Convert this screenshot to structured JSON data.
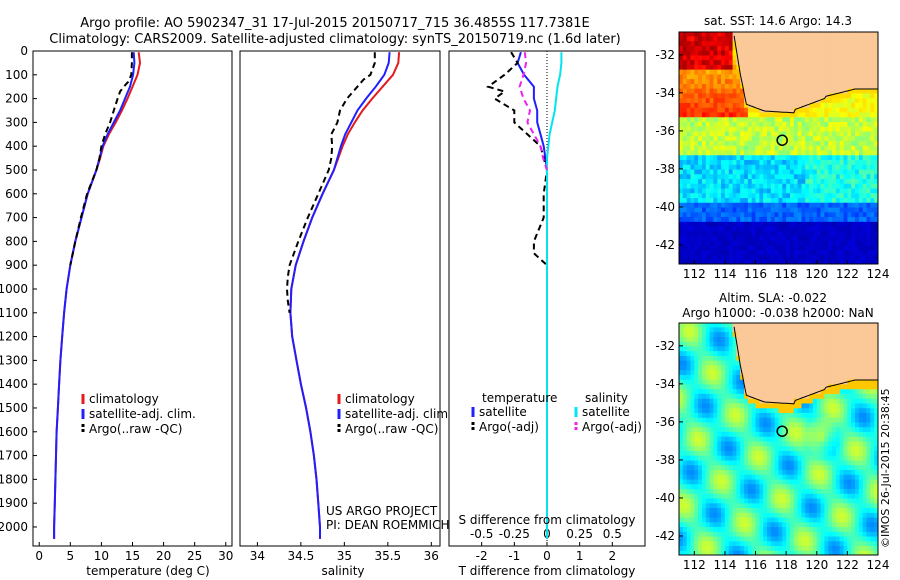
{
  "header": {
    "line1": "Argo profile: AO 5902347_31 17-Jul-2015 20150717_715 36.4855S 117.7381E",
    "line2": "Climatology: CARS2009. Satellite-adjusted climatology: synTS_20150719.nc (1.6d later)"
  },
  "watermark": "©IMOS 26-Jul-2015 20:38:45",
  "colors": {
    "climatology": "#e41a1c",
    "satellite": "#1f1fff",
    "argo": "#000000",
    "sat_salinity": "#00e5ee",
    "argo_salinity": "#ee22ee",
    "land": "#fbc898"
  },
  "chart_data": [
    {
      "id": "temperature",
      "type": "line",
      "xlabel": "temperature (deg C)",
      "ylabel": "",
      "xlim": [
        -1,
        31
      ],
      "ylim": [
        2080,
        0
      ],
      "xticks": [
        0,
        5,
        10,
        15,
        20,
        25,
        30
      ],
      "yticks": [
        0,
        100,
        200,
        300,
        400,
        500,
        600,
        700,
        800,
        900,
        1000,
        1100,
        1200,
        1300,
        1400,
        1500,
        1600,
        1700,
        1800,
        1900,
        2000
      ],
      "series": [
        {
          "name": "climatology",
          "color": "#e41a1c",
          "dash": "",
          "depth": [
            5,
            50,
            100,
            150,
            200,
            250,
            300,
            350,
            400,
            450,
            500,
            600,
            700,
            800,
            900,
            1000,
            1100,
            1200,
            1300,
            1400,
            1500,
            1600,
            1700,
            1800,
            1900,
            2000,
            2050
          ],
          "values": [
            16.0,
            16.2,
            15.8,
            15.0,
            14.2,
            13.3,
            12.3,
            11.2,
            10.3,
            9.8,
            9.2,
            7.8,
            6.8,
            5.8,
            5.0,
            4.4,
            4.0,
            3.7,
            3.4,
            3.2,
            3.0,
            2.8,
            2.7,
            2.6,
            2.5,
            2.4,
            2.4
          ]
        },
        {
          "name": "satellite-adj. clim.",
          "color": "#1f1fff",
          "dash": "",
          "depth": [
            5,
            50,
            100,
            150,
            200,
            250,
            300,
            350,
            400,
            450,
            500,
            600,
            700,
            800,
            900,
            1000,
            1100,
            1200,
            1300,
            1400,
            1500,
            1600,
            1700,
            1800,
            1900,
            2000,
            2050
          ],
          "values": [
            15.2,
            15.3,
            15.1,
            14.6,
            13.8,
            13.0,
            12.0,
            11.0,
            10.2,
            9.7,
            9.2,
            7.8,
            6.8,
            5.8,
            5.0,
            4.4,
            4.0,
            3.7,
            3.4,
            3.2,
            3.0,
            2.8,
            2.7,
            2.6,
            2.5,
            2.4,
            2.4
          ]
        },
        {
          "name": "Argo(..raw -QC)",
          "color": "#000000",
          "dash": "6,4",
          "depth": [
            5,
            50,
            100,
            130,
            150,
            170,
            200,
            250,
            300,
            350,
            400,
            450,
            500,
            600,
            700,
            800,
            900
          ],
          "values": [
            14.9,
            14.9,
            14.8,
            14.3,
            13.6,
            13.0,
            12.6,
            12.0,
            11.4,
            10.6,
            10.0,
            9.7,
            9.2,
            7.7,
            6.7,
            5.8,
            5.0
          ]
        }
      ],
      "legend": [
        "climatology",
        "satellite-adj. clim.",
        "Argo(..raw -QC)"
      ]
    },
    {
      "id": "salinity",
      "type": "line",
      "xlabel": "salinity",
      "xlim": [
        33.8,
        36.1
      ],
      "ylim": [
        2080,
        0
      ],
      "xticks": [
        34,
        34.5,
        35,
        35.5,
        36
      ],
      "series": [
        {
          "name": "climatology",
          "color": "#e41a1c",
          "dash": "",
          "depth": [
            5,
            50,
            100,
            150,
            200,
            250,
            300,
            350,
            400,
            450,
            500,
            600,
            700,
            800,
            900,
            1000,
            1100,
            1200,
            1300,
            1400,
            1500,
            1600,
            1700,
            1800,
            1900,
            2000,
            2050
          ],
          "values": [
            35.63,
            35.62,
            35.56,
            35.44,
            35.32,
            35.21,
            35.12,
            35.04,
            34.98,
            34.93,
            34.88,
            34.75,
            34.63,
            34.53,
            34.44,
            34.39,
            34.38,
            34.4,
            34.45,
            34.5,
            34.56,
            34.61,
            34.65,
            34.68,
            34.7,
            34.72,
            34.72
          ]
        },
        {
          "name": "satellite-adj. clim.",
          "color": "#1f1fff",
          "dash": "",
          "depth": [
            5,
            50,
            100,
            150,
            200,
            250,
            300,
            350,
            400,
            450,
            500,
            600,
            700,
            800,
            900,
            1000,
            1100,
            1200,
            1300,
            1400,
            1500,
            1600,
            1700,
            1800,
            1900,
            2000,
            2050
          ],
          "values": [
            35.52,
            35.51,
            35.46,
            35.36,
            35.25,
            35.15,
            35.08,
            35.01,
            34.96,
            34.92,
            34.88,
            34.75,
            34.63,
            34.53,
            34.44,
            34.39,
            34.38,
            34.4,
            34.45,
            34.5,
            34.56,
            34.61,
            34.65,
            34.68,
            34.7,
            34.72,
            34.72
          ]
        },
        {
          "name": "Argo(..raw -QC)",
          "color": "#000000",
          "dash": "6,4",
          "depth": [
            5,
            50,
            100,
            120,
            150,
            200,
            250,
            300,
            350,
            400,
            450,
            500,
            600,
            700,
            800,
            900,
            950,
            1000,
            1050,
            1100
          ],
          "values": [
            35.35,
            35.35,
            35.3,
            35.22,
            35.15,
            35.03,
            34.95,
            34.92,
            34.85,
            34.86,
            34.85,
            34.82,
            34.7,
            34.58,
            34.47,
            34.37,
            34.35,
            34.34,
            34.35,
            34.37
          ]
        }
      ],
      "legend": [
        "climatology",
        "satellite-adj. clim.",
        "Argo(..raw -QC)"
      ],
      "annotation": [
        "US ARGO PROJECT",
        "PI: DEAN ROEMMICH"
      ]
    },
    {
      "id": "difference",
      "type": "line",
      "xlabel": "T difference from climatology",
      "top_xlabel": "S difference from climatology",
      "xlim": [
        -3,
        3
      ],
      "ylim": [
        2080,
        0
      ],
      "xticks_T": [
        -2,
        -1,
        0,
        1,
        2
      ],
      "xticks_S": [
        "-0.5",
        "-0.25",
        "0",
        "0.25",
        "0.5"
      ],
      "series": [
        {
          "name": "T satellite",
          "color": "#1f1fff",
          "dash": "",
          "depth": [
            5,
            50,
            100,
            150,
            200,
            250,
            300,
            350,
            400,
            450,
            500,
            600,
            800,
            1000,
            1500,
            2050
          ],
          "values": [
            -0.8,
            -0.9,
            -0.7,
            -0.4,
            -0.4,
            -0.3,
            -0.3,
            -0.2,
            -0.1,
            -0.05,
            0,
            0,
            0,
            0,
            0,
            0
          ]
        },
        {
          "name": "T Argo(-adj)",
          "color": "#000000",
          "dash": "6,4",
          "depth": [
            5,
            50,
            100,
            150,
            170,
            200,
            250,
            300,
            350,
            400,
            450,
            500,
            600,
            700,
            800,
            850,
            900
          ],
          "values": [
            -1.1,
            -0.9,
            -1.3,
            -1.8,
            -1.3,
            -1.6,
            -1.0,
            -1.0,
            -0.6,
            -0.2,
            -0.1,
            0.0,
            -0.1,
            -0.1,
            -0.4,
            -0.4,
            0.0
          ]
        },
        {
          "name": "S satellite",
          "color": "#00e5ee",
          "dash": "",
          "depth": [
            5,
            50,
            100,
            150,
            200,
            250,
            300,
            350,
            400,
            450,
            500,
            700,
            1000,
            1500,
            2050
          ],
          "values": [
            0.11,
            0.11,
            0.1,
            0.08,
            0.07,
            0.06,
            0.04,
            0.02,
            0.01,
            0.0,
            0.0,
            0.0,
            0.0,
            0.0,
            0.0
          ]
        },
        {
          "name": "S Argo(-adj)",
          "color": "#ee22ee",
          "dash": "6,4",
          "depth": [
            5,
            50,
            100,
            150,
            200,
            250,
            300,
            350,
            400,
            450,
            500
          ],
          "values": [
            -0.17,
            -0.16,
            -0.18,
            -0.21,
            -0.18,
            -0.13,
            -0.15,
            -0.1,
            -0.05,
            -0.03,
            0.0
          ]
        }
      ],
      "legend_temperature": {
        "title": "temperature",
        "items": [
          "satellite",
          "Argo(-adj)"
        ]
      },
      "legend_salinity": {
        "title": "salinity",
        "items": [
          "satellite",
          "Argo(-adj)"
        ]
      }
    },
    {
      "id": "sst_map",
      "type": "heatmap",
      "title": "sat. SST: 14.6  Argo: 14.3",
      "xlim": [
        111,
        124
      ],
      "ylim": [
        -43,
        -30.8
      ],
      "xticks": [
        112,
        114,
        116,
        118,
        120,
        122,
        124
      ],
      "yticks": [
        -32,
        -34,
        -36,
        -38,
        -40,
        -42
      ],
      "float_position": {
        "lon": 117.74,
        "lat": -36.49
      }
    },
    {
      "id": "sla_map",
      "type": "heatmap",
      "title_line1": "Altim. SLA: -0.022",
      "title_line2": "Argo h1000: -0.038  h2000: NaN",
      "xlim": [
        111,
        124
      ],
      "ylim": [
        -43,
        -30.8
      ],
      "xticks": [
        112,
        114,
        116,
        118,
        120,
        122,
        124
      ],
      "yticks": [
        -32,
        -34,
        -36,
        -38,
        -40,
        -42
      ],
      "float_position": {
        "lon": 117.74,
        "lat": -36.49
      }
    }
  ]
}
